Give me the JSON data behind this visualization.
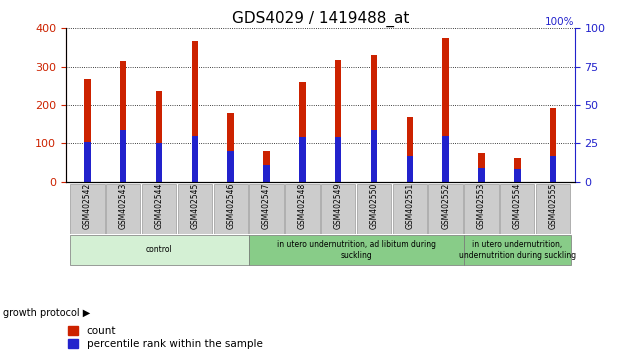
{
  "title": "GDS4029 / 1419488_at",
  "samples": [
    "GSM402542",
    "GSM402543",
    "GSM402544",
    "GSM402545",
    "GSM402546",
    "GSM402547",
    "GSM402548",
    "GSM402549",
    "GSM402550",
    "GSM402551",
    "GSM402552",
    "GSM402553",
    "GSM402554",
    "GSM402555"
  ],
  "count_values": [
    268,
    315,
    236,
    368,
    178,
    80,
    261,
    317,
    330,
    168,
    375,
    74,
    62,
    193
  ],
  "percentile_values": [
    104,
    136,
    100,
    120,
    80,
    44,
    116,
    116,
    136,
    68,
    120,
    36,
    32,
    68
  ],
  "groups": [
    {
      "label": "control",
      "start": 0,
      "end": 4,
      "color": "#d4f0d4"
    },
    {
      "label": "in utero undernutrition, ad libitum during\nsuckling",
      "start": 5,
      "end": 10,
      "color": "#88cc88"
    },
    {
      "label": "in utero undernutrition,\nundernutrition during suckling",
      "start": 11,
      "end": 13,
      "color": "#88cc88"
    }
  ],
  "ylim_left": [
    0,
    400
  ],
  "ylim_right": [
    0,
    100
  ],
  "yticks_left": [
    0,
    100,
    200,
    300,
    400
  ],
  "yticks_right": [
    0,
    25,
    50,
    75,
    100
  ],
  "bar_color_count": "#cc2200",
  "bar_color_pct": "#2222cc",
  "bar_width": 0.18,
  "pct_bar_width": 0.18,
  "growth_protocol_label": "growth protocol",
  "legend_count": "count",
  "legend_pct": "percentile rank within the sample",
  "title_fontsize": 11,
  "left_tick_color": "#cc2200",
  "right_tick_color": "#2222cc"
}
